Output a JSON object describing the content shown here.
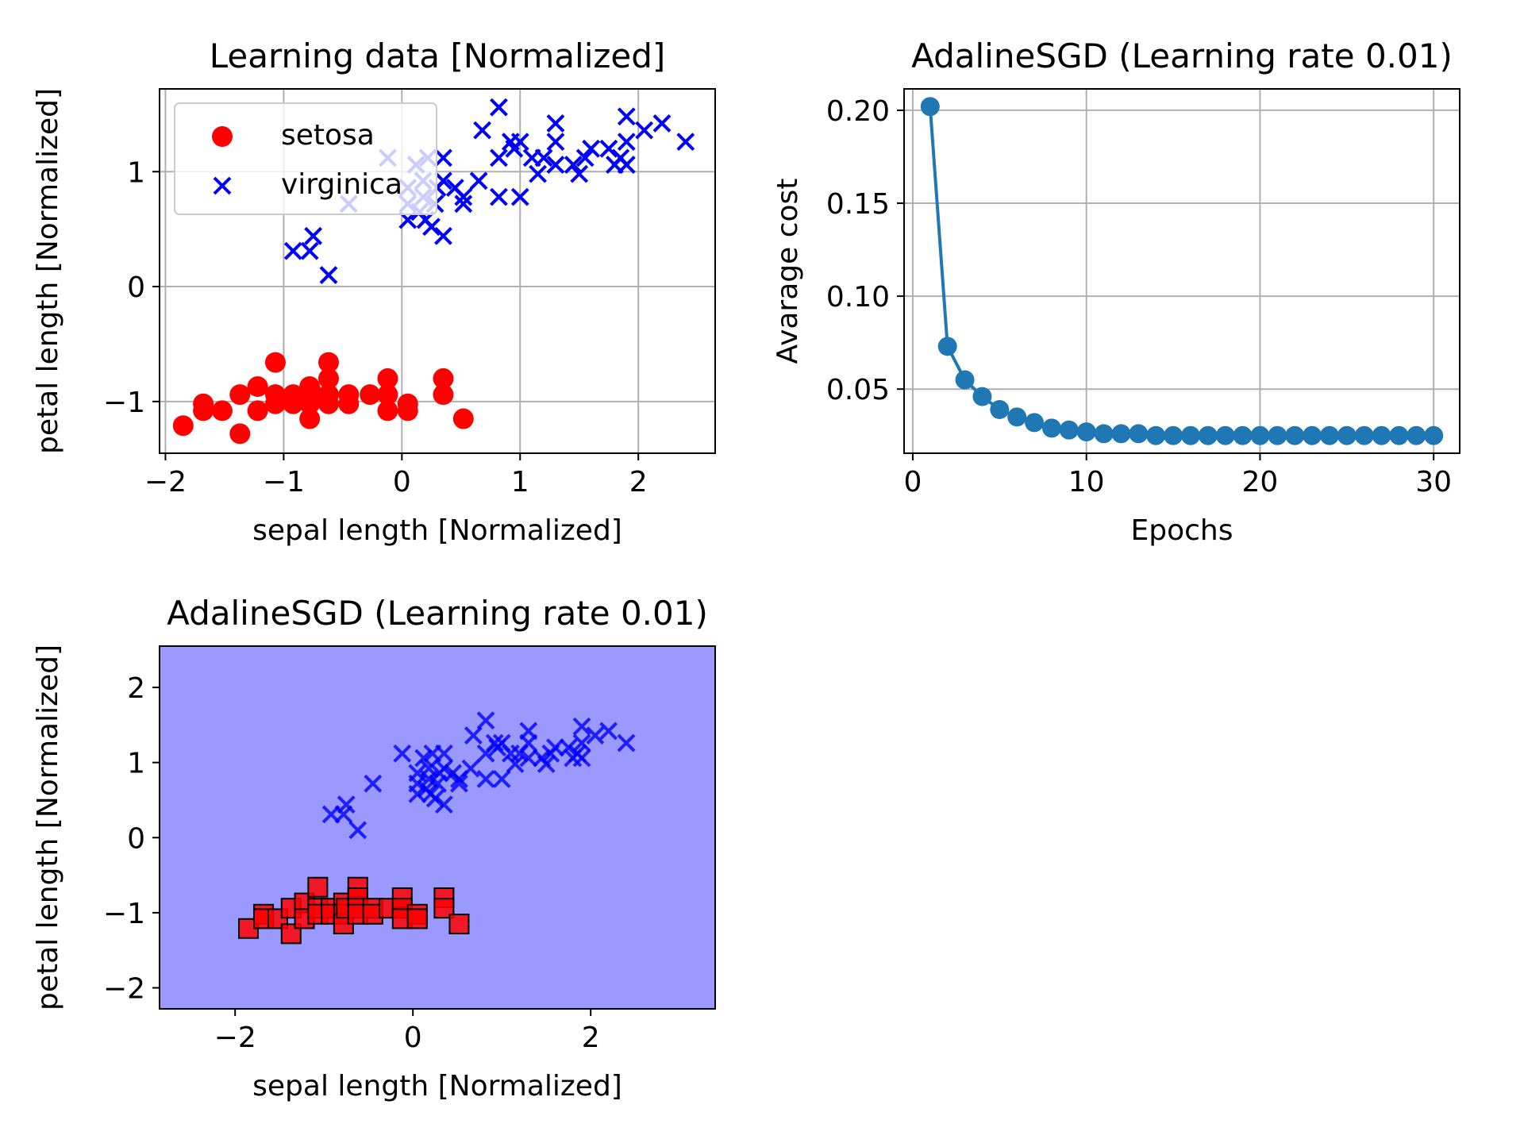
{
  "chart_data": [
    {
      "type": "scatter",
      "title": "Learning data [Normalized]",
      "xlabel": "sepal length [Normalized]",
      "ylabel": "petal length [Normalized]",
      "xlim": [
        -2.05,
        2.65
      ],
      "ylim": [
        -1.45,
        1.72
      ],
      "xticks": [
        -2,
        -1,
        0,
        1,
        2
      ],
      "xtick_labels": [
        "−2",
        "−1",
        "0",
        "1",
        "2"
      ],
      "yticks": [
        -1,
        0,
        1
      ],
      "ytick_labels": [
        "−1",
        "0",
        "1"
      ],
      "grid": true,
      "legend": "upper-left",
      "series": [
        {
          "name": "setosa",
          "marker": "circle",
          "color": "#ff0000",
          "points": [
            [
              -1.85,
              -1.21
            ],
            [
              -1.68,
              -1.02
            ],
            [
              -1.68,
              -1.08
            ],
            [
              -1.52,
              -1.08
            ],
            [
              -1.37,
              -0.94
            ],
            [
              -1.37,
              -1.28
            ],
            [
              -1.22,
              -0.87
            ],
            [
              -1.22,
              -1.08
            ],
            [
              -1.07,
              -0.66
            ],
            [
              -1.07,
              -0.94
            ],
            [
              -1.07,
              -1.02
            ],
            [
              -0.92,
              -0.94
            ],
            [
              -0.92,
              -1.02
            ],
            [
              -0.78,
              -0.87
            ],
            [
              -0.78,
              -1.02
            ],
            [
              -0.78,
              -1.15
            ],
            [
              -0.75,
              -0.94
            ],
            [
              -0.62,
              -0.66
            ],
            [
              -0.62,
              -0.8
            ],
            [
              -0.62,
              -0.94
            ],
            [
              -0.62,
              -1.02
            ],
            [
              -0.45,
              -0.94
            ],
            [
              -0.45,
              -1.02
            ],
            [
              -0.27,
              -0.94
            ],
            [
              -0.12,
              -0.8
            ],
            [
              -0.12,
              -0.94
            ],
            [
              -0.12,
              -1.08
            ],
            [
              0.05,
              -1.02
            ],
            [
              0.05,
              -1.08
            ],
            [
              0.35,
              -0.8
            ],
            [
              0.35,
              -0.94
            ],
            [
              0.52,
              -1.15
            ]
          ]
        },
        {
          "name": "virginica",
          "marker": "x",
          "color": "#0000ff",
          "points": [
            [
              -0.92,
              0.31
            ],
            [
              -0.78,
              0.31
            ],
            [
              -0.75,
              0.44
            ],
            [
              -0.62,
              0.1
            ],
            [
              -0.45,
              0.72
            ],
            [
              -0.12,
              1.12
            ],
            [
              0.05,
              0.58
            ],
            [
              0.05,
              0.72
            ],
            [
              0.05,
              0.86
            ],
            [
              0.12,
              1.06
            ],
            [
              0.15,
              0.65
            ],
            [
              0.18,
              0.78
            ],
            [
              0.18,
              0.92
            ],
            [
              0.2,
              0.58
            ],
            [
              0.22,
              1.12
            ],
            [
              0.25,
              0.52
            ],
            [
              0.28,
              0.72
            ],
            [
              0.3,
              0.86
            ],
            [
              0.35,
              0.44
            ],
            [
              0.35,
              0.92
            ],
            [
              0.35,
              1.12
            ],
            [
              0.45,
              0.86
            ],
            [
              0.52,
              0.78
            ],
            [
              0.52,
              0.72
            ],
            [
              0.65,
              0.92
            ],
            [
              0.68,
              1.36
            ],
            [
              0.82,
              0.78
            ],
            [
              0.82,
              1.12
            ],
            [
              0.82,
              1.56
            ],
            [
              0.92,
              1.26
            ],
            [
              0.95,
              1.2
            ],
            [
              1.0,
              0.78
            ],
            [
              1.0,
              1.26
            ],
            [
              1.1,
              1.12
            ],
            [
              1.15,
              0.98
            ],
            [
              1.2,
              1.12
            ],
            [
              1.3,
              1.26
            ],
            [
              1.3,
              1.42
            ],
            [
              1.3,
              1.06
            ],
            [
              1.45,
              1.06
            ],
            [
              1.5,
              0.98
            ],
            [
              1.55,
              1.12
            ],
            [
              1.6,
              1.2
            ],
            [
              1.75,
              1.2
            ],
            [
              1.8,
              1.06
            ],
            [
              1.85,
              1.12
            ],
            [
              1.9,
              1.06
            ],
            [
              1.9,
              1.26
            ],
            [
              1.9,
              1.48
            ],
            [
              2.05,
              1.36
            ],
            [
              2.2,
              1.42
            ],
            [
              2.4,
              1.26
            ]
          ]
        }
      ]
    },
    {
      "type": "line",
      "title": "AdalineSGD (Learning rate 0.01)",
      "xlabel": "Epochs",
      "ylabel": "Avarage cost",
      "xlim": [
        -0.5,
        31.5
      ],
      "ylim": [
        0.0155,
        0.2115
      ],
      "xticks": [
        0,
        10,
        20,
        30
      ],
      "xtick_labels": [
        "0",
        "10",
        "20",
        "30"
      ],
      "yticks": [
        0.05,
        0.1,
        0.15,
        0.2
      ],
      "ytick_labels": [
        "0.05",
        "0.10",
        "0.15",
        "0.20"
      ],
      "grid": true,
      "series": [
        {
          "color": "#1f77b4",
          "marker": "circle",
          "x": [
            1,
            2,
            3,
            4,
            5,
            6,
            7,
            8,
            9,
            10,
            11,
            12,
            13,
            14,
            15,
            16,
            17,
            18,
            19,
            20,
            21,
            22,
            23,
            24,
            25,
            26,
            27,
            28,
            29,
            30
          ],
          "values": [
            0.202,
            0.073,
            0.055,
            0.046,
            0.039,
            0.035,
            0.032,
            0.029,
            0.028,
            0.027,
            0.026,
            0.026,
            0.026,
            0.025,
            0.025,
            0.025,
            0.025,
            0.025,
            0.025,
            0.025,
            0.025,
            0.025,
            0.025,
            0.025,
            0.025,
            0.025,
            0.025,
            0.025,
            0.025,
            0.025
          ]
        }
      ]
    },
    {
      "type": "scatter",
      "title": "AdalineSGD (Learning rate 0.01)",
      "xlabel": "sepal length [Normalized]",
      "ylabel": "petal length [Normalized]",
      "xlim": [
        -2.85,
        3.4
      ],
      "ylim": [
        -2.28,
        2.55
      ],
      "xticks": [
        -2,
        0,
        2
      ],
      "xtick_labels": [
        "−2",
        "0",
        "2"
      ],
      "yticks": [
        -2,
        -1,
        0,
        1,
        2
      ],
      "ytick_labels": [
        "−2",
        "−1",
        "0",
        "1",
        "2"
      ],
      "grid": false,
      "background_color": "#9999ff",
      "series": [
        {
          "marker": "square",
          "color": "#ff0000",
          "points": "same-as-setosa"
        },
        {
          "marker": "x",
          "color": "#0000ff",
          "points": "same-as-virginica"
        }
      ]
    }
  ]
}
